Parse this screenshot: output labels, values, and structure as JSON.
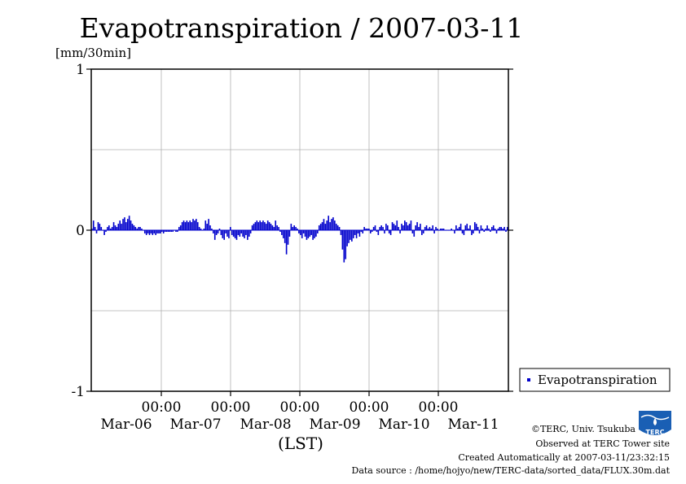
{
  "chart_data": {
    "type": "bar",
    "title": "Evapotranspiration / 2007-03-11",
    "ylabel": "[mm/30min]",
    "xlabel": "(LST)",
    "ylim": [
      -1,
      1
    ],
    "yticks": [
      "1",
      "0",
      "-1"
    ],
    "x_time_labels": [
      "00:00",
      "00:00",
      "00:00",
      "00:00",
      "00:00"
    ],
    "x_date_labels": [
      "Mar-06",
      "Mar-07",
      "Mar-08",
      "Mar-09",
      "Mar-10",
      "Mar-11"
    ],
    "grid": true,
    "legend_position": "bottom-right",
    "series": [
      {
        "name": "Evapotranspiration",
        "color": "#0000cc",
        "values": [
          0.01,
          0.06,
          0.02,
          -0.02,
          0.05,
          0.04,
          0.02,
          0.0,
          -0.03,
          -0.01,
          0.02,
          0.03,
          0.01,
          0.02,
          0.05,
          0.03,
          0.02,
          0.04,
          0.06,
          0.04,
          0.07,
          0.08,
          0.05,
          0.07,
          0.09,
          0.06,
          0.04,
          0.03,
          0.02,
          0.01,
          0.02,
          0.02,
          0.01,
          0.0,
          -0.02,
          -0.03,
          -0.02,
          -0.03,
          -0.02,
          -0.03,
          -0.02,
          -0.03,
          -0.02,
          -0.02,
          -0.02,
          -0.01,
          -0.02,
          -0.01,
          -0.01,
          -0.01,
          -0.01,
          -0.01,
          -0.01,
          0.0,
          -0.01,
          -0.01,
          0.02,
          0.03,
          0.05,
          0.06,
          0.05,
          0.06,
          0.05,
          0.06,
          0.05,
          0.07,
          0.06,
          0.07,
          0.05,
          0.02,
          0.01,
          0.0,
          0.01,
          0.06,
          0.04,
          0.07,
          0.03,
          0.01,
          -0.02,
          -0.06,
          -0.03,
          -0.02,
          0.01,
          -0.03,
          -0.05,
          -0.06,
          -0.02,
          -0.04,
          -0.05,
          0.02,
          -0.03,
          -0.04,
          -0.05,
          -0.06,
          -0.03,
          -0.04,
          -0.02,
          -0.04,
          -0.05,
          -0.03,
          -0.06,
          -0.04,
          -0.02,
          0.03,
          0.04,
          0.05,
          0.06,
          0.05,
          0.06,
          0.05,
          0.06,
          0.05,
          0.04,
          0.06,
          0.05,
          0.04,
          0.03,
          0.02,
          0.06,
          0.03,
          0.02,
          -0.01,
          -0.03,
          -0.05,
          -0.08,
          -0.15,
          -0.09,
          -0.04,
          0.04,
          0.02,
          0.03,
          0.02,
          0.01,
          -0.02,
          -0.03,
          -0.05,
          -0.02,
          -0.04,
          -0.06,
          -0.05,
          -0.04,
          -0.03,
          -0.06,
          -0.05,
          -0.04,
          -0.02,
          0.03,
          0.04,
          0.05,
          0.07,
          0.04,
          0.06,
          0.09,
          0.05,
          0.07,
          0.08,
          0.06,
          0.04,
          0.03,
          0.02,
          -0.03,
          -0.12,
          -0.2,
          -0.18,
          -0.1,
          -0.08,
          -0.06,
          -0.07,
          -0.05,
          -0.03,
          -0.05,
          -0.02,
          -0.04,
          -0.01,
          -0.02,
          0.02,
          0.01,
          0.01,
          0.01,
          -0.02,
          -0.01,
          0.02,
          0.03,
          -0.01,
          -0.03,
          0.02,
          0.03,
          0.02,
          -0.02,
          0.04,
          0.03,
          -0.02,
          -0.03,
          0.05,
          0.04,
          0.03,
          0.06,
          0.02,
          -0.02,
          0.04,
          0.03,
          0.06,
          0.05,
          0.03,
          0.04,
          0.06,
          -0.02,
          -0.04,
          0.03,
          0.05,
          0.02,
          0.04,
          -0.03,
          -0.02,
          0.02,
          0.03,
          0.01,
          0.02,
          0.01,
          0.03,
          -0.02,
          0.02,
          0.01,
          0.0,
          0.01,
          0.01,
          0.01,
          0.0,
          0.0,
          0.0,
          0.0,
          0.01,
          0.0,
          -0.02,
          0.03,
          0.01,
          0.02,
          0.04,
          -0.02,
          -0.03,
          0.03,
          0.04,
          0.01,
          0.03,
          -0.03,
          -0.02,
          0.05,
          0.04,
          0.02,
          -0.02,
          0.03,
          0.01,
          -0.01,
          0.01,
          0.03,
          0.01,
          -0.01,
          0.02,
          0.03,
          0.01,
          -0.02,
          0.01,
          0.02,
          0.02,
          0.01,
          0.02,
          -0.01,
          0.02
        ]
      }
    ]
  },
  "footer": {
    "copyright": "©TERC, Univ. Tsukuba",
    "site": "Observed at TERC Tower site",
    "created": "Created Automatically at 2007-03-11/23:32:15",
    "source": "Data source : /home/hojyo/new/TERC-data/sorted_data/FLUX.30m.dat"
  },
  "logo": {
    "text": "TERC"
  }
}
